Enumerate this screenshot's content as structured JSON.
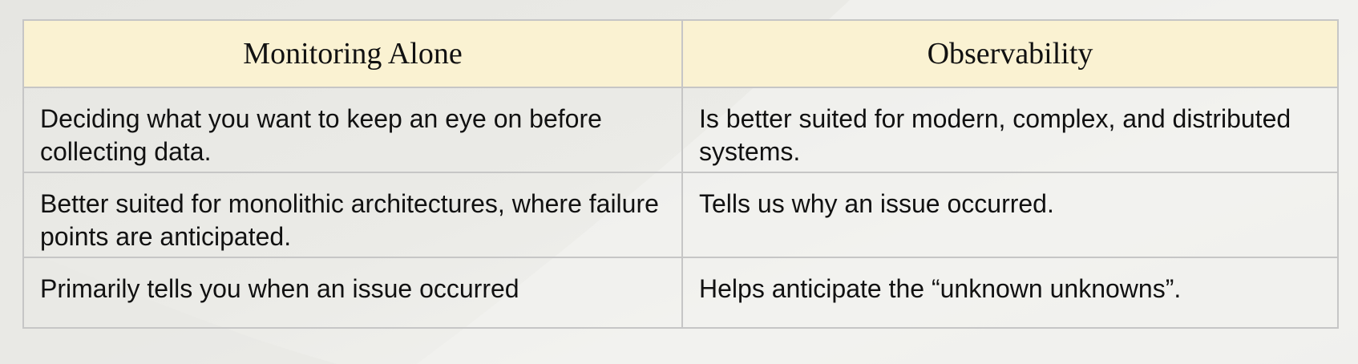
{
  "comparison_table": {
    "headers": [
      "Monitoring Alone",
      "Observability"
    ],
    "rows": [
      [
        "Deciding what you want to keep an eye on before collecting data.",
        "Is better suited for modern, complex, and distributed systems."
      ],
      [
        "Better suited for monolithic architectures, where failure points are anticipated.",
        "Tells us why an issue occurred."
      ],
      [
        "Primarily tells you when an issue occurred",
        "Helps anticipate the “unknown unknowns”."
      ]
    ]
  }
}
